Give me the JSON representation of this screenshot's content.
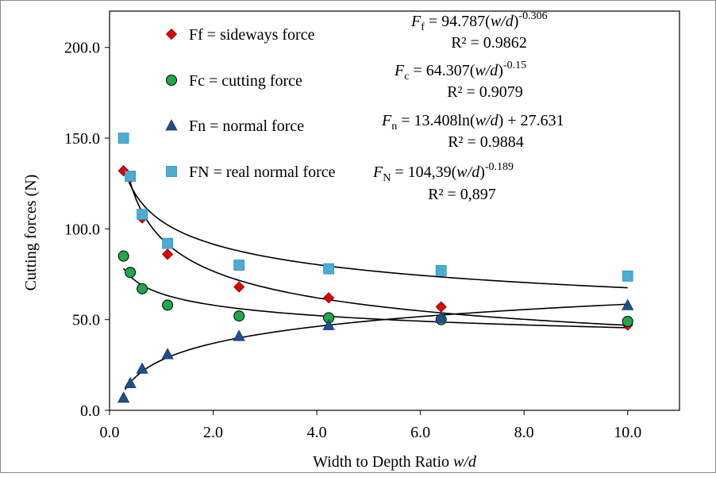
{
  "chart_data": {
    "type": "scatter",
    "xlabel": "Width to Depth Ratio w/d",
    "ylabel": "Cutting forces (N)",
    "xlim": [
      0,
      11
    ],
    "ylim": [
      0,
      220
    ],
    "x_ticks": [
      "0.0",
      "2.0",
      "4.0",
      "6.0",
      "8.0",
      "10.0"
    ],
    "y_ticks": [
      "0.0",
      "50.0",
      "100.0",
      "150.0",
      "200.0"
    ],
    "grid": false,
    "legend_position": "top-left",
    "series": [
      {
        "name": "Ff = sideways force",
        "marker": "diamond",
        "color": "#e00000",
        "x": [
          0.27,
          0.4,
          0.63,
          1.12,
          2.5,
          4.23,
          6.4,
          10.0
        ],
        "y": [
          132,
          128,
          106,
          86,
          68,
          62,
          57,
          47
        ]
      },
      {
        "name": "Fc = cutting force",
        "marker": "circle",
        "color": "#1fa84a",
        "x": [
          0.27,
          0.4,
          0.63,
          1.12,
          2.5,
          4.23,
          6.4,
          10.0
        ],
        "y": [
          85,
          76,
          67,
          58,
          52,
          51,
          50,
          49
        ]
      },
      {
        "name": "Fn = normal force",
        "marker": "triangle",
        "color": "#1f4e8c",
        "x": [
          0.27,
          0.4,
          0.63,
          1.12,
          2.5,
          4.23,
          6.4,
          10.0
        ],
        "y": [
          7,
          15,
          23,
          31,
          41,
          47,
          51,
          58
        ]
      },
      {
        "name": "FN = real normal force",
        "marker": "square",
        "color": "#4bacd4",
        "x": [
          0.27,
          0.4,
          0.63,
          1.12,
          2.5,
          4.23,
          6.4,
          10.0
        ],
        "y": [
          150,
          129,
          108,
          92,
          80,
          78,
          77,
          74
        ]
      }
    ],
    "trendlines": [
      {
        "series": "Ff",
        "model": "power",
        "a": 94.787,
        "b": -0.306
      },
      {
        "series": "Fc",
        "model": "power",
        "a": 64.307,
        "b": -0.15
      },
      {
        "series": "Fn",
        "model": "log",
        "a": 13.408,
        "c": 27.631
      },
      {
        "series": "FN",
        "model": "power",
        "a": 104.39,
        "b": -0.189
      }
    ],
    "equations": [
      {
        "sym": "F",
        "sub": "f",
        "body": " = 94.787(",
        "var": "w/d",
        "close": ")",
        "exp": "-0.306",
        "r2": "R² = 0.9862"
      },
      {
        "sym": "F",
        "sub": "c",
        "body": " = 64.307(",
        "var": "w/d",
        "close": ")",
        "exp": "-0.15",
        "r2": "R² = 0.9079"
      },
      {
        "sym": "F",
        "sub": "n",
        "body": " = 13.408ln(",
        "var": "w/d",
        "close": ") + 27.631",
        "exp": "",
        "r2": "R² = 0.9884"
      },
      {
        "sym": "F",
        "sub": "N",
        "body": " = 104,39(",
        "var": "w/d",
        "close": ")",
        "exp": "-0.189",
        "r2": "R² = 0,897"
      }
    ]
  }
}
